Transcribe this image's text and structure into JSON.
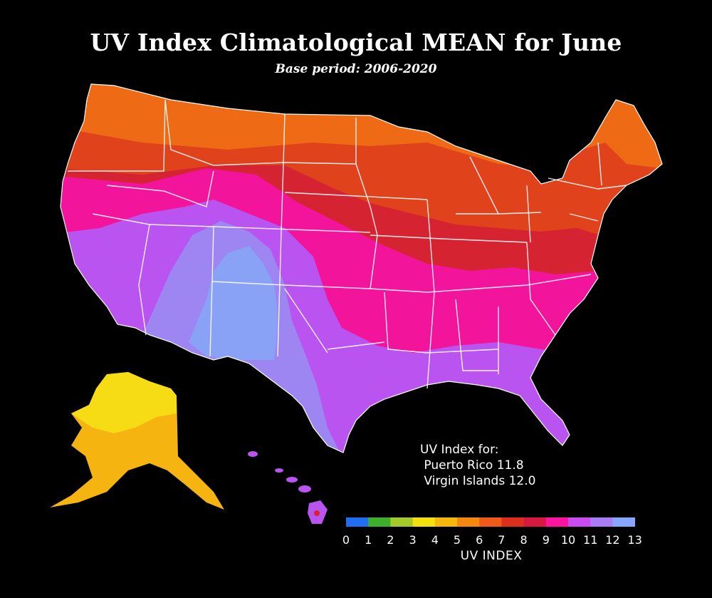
{
  "title": "UV Index Climatological MEAN for June",
  "subtitle": "Base period: 2006-2020",
  "territory_note": {
    "heading": "UV Index for:",
    "puerto_rico": " Puerto Rico 11.8",
    "virgin_islands": " Virgin Islands 12.0"
  },
  "legend": {
    "label": "UV INDEX",
    "ticks": [
      "0",
      "1",
      "2",
      "3",
      "4",
      "5",
      "6",
      "7",
      "8",
      "9",
      "10",
      "11",
      "12",
      "13"
    ],
    "colors": [
      "#1f6ef2",
      "#3fae2a",
      "#a3c92a",
      "#f2e10f",
      "#f5b60d",
      "#f4870f",
      "#ef5a1a",
      "#de2f1e",
      "#d8183f",
      "#ff14a2",
      "#c94cf2",
      "#a87cf5",
      "#86a6ff"
    ]
  },
  "bands": {
    "uv6": "#ef6a14",
    "uv7": "#e0421c",
    "uv8": "#d62332",
    "uv9": "#f2149a",
    "uv10": "#b954f0",
    "uv11": "#9d86f2",
    "uv12": "#8aa2f5",
    "alaska_low": "#f5dc14",
    "alaska_high": "#f5b40f"
  }
}
